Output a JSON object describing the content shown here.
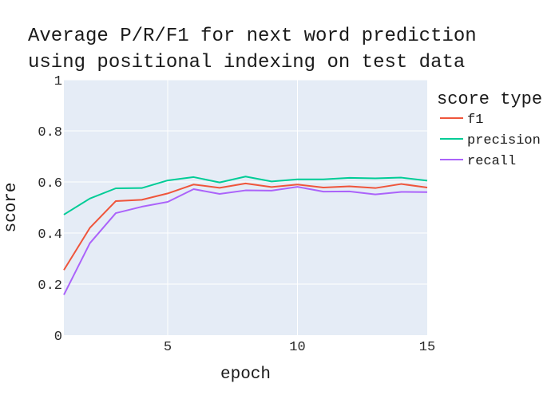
{
  "chart_data": {
    "type": "line",
    "title": [
      "Average P/R/F1 for next word prediction",
      "using positional indexing on test data"
    ],
    "xlabel": "epoch",
    "ylabel": "score",
    "xlim": [
      1,
      15
    ],
    "ylim": [
      0,
      1
    ],
    "xticks": [
      5,
      10,
      15
    ],
    "yticks": [
      0,
      0.2,
      0.4,
      0.6,
      0.8,
      1
    ],
    "ytick_labels": [
      "0",
      "0.2",
      "0.4",
      "0.6",
      "0.8",
      "1"
    ],
    "grid": true,
    "legend": {
      "title": "score type",
      "placement": "right"
    },
    "x": [
      1,
      2,
      3,
      4,
      5,
      6,
      7,
      8,
      9,
      10,
      11,
      12,
      13,
      14,
      15
    ],
    "series": [
      {
        "name": "f1",
        "color": "#EF553B",
        "values": [
          0.255,
          0.42,
          0.525,
          0.53,
          0.555,
          0.59,
          0.577,
          0.594,
          0.58,
          0.59,
          0.578,
          0.583,
          0.576,
          0.592,
          0.578
        ]
      },
      {
        "name": "precision",
        "color": "#00CC96",
        "values": [
          0.472,
          0.535,
          0.575,
          0.576,
          0.606,
          0.619,
          0.598,
          0.621,
          0.602,
          0.61,
          0.61,
          0.616,
          0.614,
          0.617,
          0.605
        ]
      },
      {
        "name": "recall",
        "color": "#AB63FA",
        "values": [
          0.158,
          0.36,
          0.478,
          0.503,
          0.522,
          0.572,
          0.553,
          0.567,
          0.566,
          0.581,
          0.562,
          0.563,
          0.551,
          0.561,
          0.56
        ]
      }
    ]
  }
}
